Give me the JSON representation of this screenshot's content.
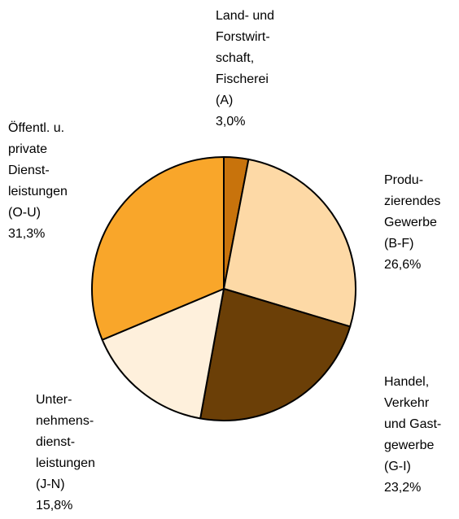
{
  "chart_data": {
    "type": "pie",
    "categories": [
      [
        "Land- und",
        "Forstwirt-",
        "schaft,",
        "Fischerei",
        "(A)"
      ],
      [
        "Produ-",
        "zierendes",
        "Gewerbe",
        "(B-F)"
      ],
      [
        "Handel,",
        "Verkehr",
        "und Gast-",
        "gewerbe",
        "(G-I)"
      ],
      [
        "Unter-",
        "nehmens-",
        "dienst-",
        "leistungen",
        "(J-N)"
      ],
      [
        "Öffentl. u.",
        "private",
        "Dienst-",
        "leistungen",
        "(O-U)"
      ]
    ],
    "values": [
      3.0,
      26.6,
      23.2,
      15.8,
      31.3
    ],
    "value_labels": [
      "3,0%",
      "26,6%",
      "23,2%",
      "15,8%",
      "31,3%"
    ],
    "colors": [
      "#c8730c",
      "#fdd9a6",
      "#6b3f07",
      "#fef0dc",
      "#f9a62a"
    ]
  }
}
